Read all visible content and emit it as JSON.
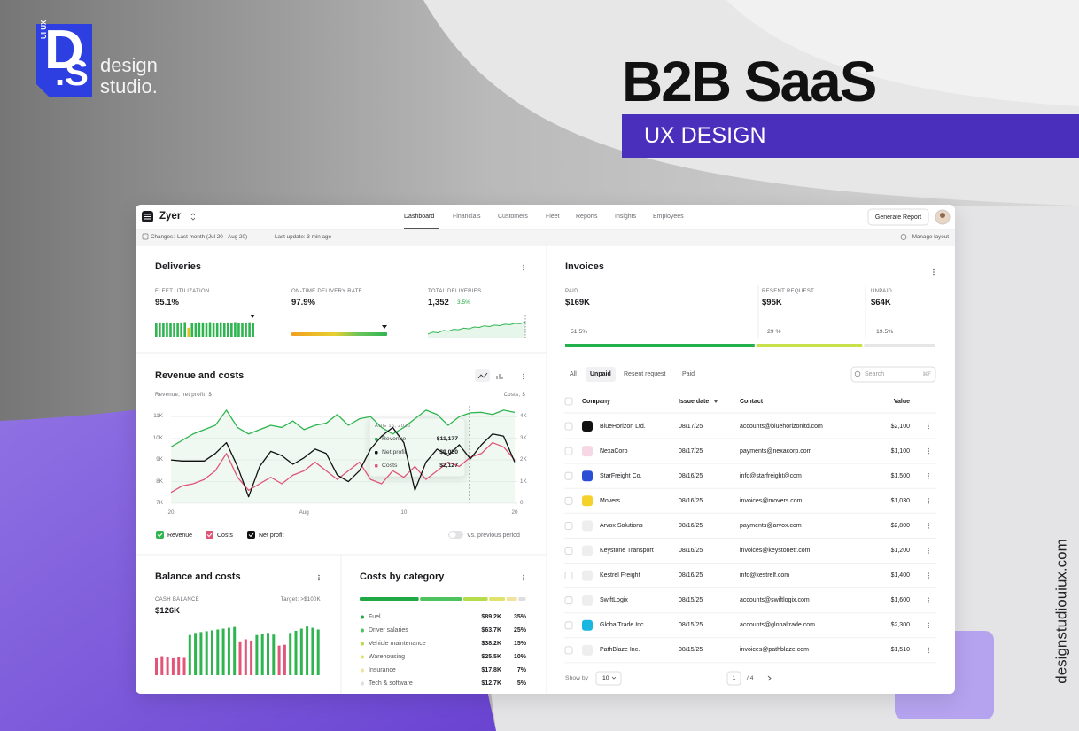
{
  "brand": {
    "logo_mark": "D",
    "logo_mark_2": ".S",
    "logo_tag": "UI UX",
    "name_line1": "design",
    "name_line2": "studio."
  },
  "hero": {
    "title": "B2B SaaS",
    "subtitle": "UX DESIGN"
  },
  "website": "designstudiouiux.com",
  "app": {
    "name": "Zyer",
    "nav": [
      "Dashboard",
      "Financials",
      "Customers",
      "Fleet",
      "Reports",
      "Insights",
      "Employees"
    ],
    "generate_button": "Generate Report",
    "changes_label": "Changes:",
    "changes_value": "Last month (Jul 20 - Aug 20)",
    "last_update": "Last update: 3 min ago",
    "manage_layout": "Manage layout"
  },
  "deliveries": {
    "title": "Deliveries",
    "fleet": {
      "label": "FLEET UTILIZATION",
      "value": "95.1%",
      "bars": [
        92,
        95,
        90,
        96,
        94,
        93,
        88,
        95,
        97,
        60,
        94,
        92,
        96,
        95,
        93,
        97,
        90,
        94,
        96,
        92,
        95,
        93,
        97,
        94,
        91,
        95,
        96,
        93
      ],
      "bar_colors": [
        "#2fb550",
        "#2fb550",
        "#2fb550",
        "#2fb550",
        "#2fb550",
        "#2fb550",
        "#2fb550",
        "#2fb550",
        "#2fb550",
        "#e4c21c",
        "#2fb550",
        "#2fb550",
        "#2fb550",
        "#2fb550",
        "#2fb550",
        "#2fb550",
        "#2fb550",
        "#2fb550",
        "#2fb550",
        "#2fb550",
        "#2fb550",
        "#2fb550",
        "#2fb550",
        "#2fb550",
        "#2fb550",
        "#2fb550",
        "#2fb550",
        "#2fb550"
      ],
      "ylim": [
        0,
        100
      ]
    },
    "on_time": {
      "label": "ON-TIME DELIVERY RATE",
      "value": "97.9%"
    },
    "total": {
      "label": "TOTAL DELIVERIES",
      "value": "1,352",
      "change": "↑ 3.5%",
      "trend": [
        20,
        28,
        25,
        35,
        32,
        40,
        38,
        45,
        42,
        50,
        48,
        55,
        52,
        58,
        56,
        62,
        60,
        66,
        64,
        72
      ],
      "ylim": [
        0,
        100
      ],
      "color": "#2fb550"
    }
  },
  "revenue_chart": {
    "type": "line",
    "title": "Revenue and costs",
    "y_label": "Revenue, net profit, $",
    "y2_label": "Costs, $",
    "categories": [
      "20",
      null,
      null,
      null,
      null,
      null,
      null,
      null,
      null,
      null,
      null,
      null,
      "Aug",
      null,
      null,
      null,
      null,
      null,
      null,
      null,
      null,
      "10",
      null,
      null,
      null,
      null,
      null,
      null,
      null,
      null,
      null,
      "20"
    ],
    "series": [
      {
        "name": "Revenue",
        "color": "#2fb550",
        "values": [
          9600,
          9900,
          10200,
          10400,
          10600,
          11300,
          10500,
          10200,
          10400,
          10600,
          10500,
          10800,
          10400,
          10600,
          10700,
          11100,
          10600,
          10900,
          11000,
          10500,
          10200,
          10500,
          10900,
          11300,
          11100,
          10600,
          11000,
          11177,
          11200,
          11100,
          11300,
          11200
        ]
      },
      {
        "name": "Costs",
        "color": "#e05577",
        "axis": "y2",
        "values": [
          500,
          800,
          900,
          1100,
          1500,
          2300,
          1200,
          600,
          900,
          1200,
          900,
          1300,
          1500,
          1900,
          1500,
          1100,
          1500,
          1900,
          1100,
          900,
          1500,
          1200,
          1700,
          1100,
          1500,
          1900,
          1700,
          2127,
          2300,
          2800,
          2600,
          2000
        ]
      },
      {
        "name": "Net profit",
        "color": "#111111",
        "values": [
          9000,
          8950,
          8950,
          8950,
          9300,
          9800,
          8700,
          7300,
          8700,
          9400,
          9200,
          8800,
          9100,
          9500,
          9300,
          8300,
          8000,
          8500,
          9500,
          10100,
          10500,
          9800,
          7600,
          8900,
          9500,
          9200,
          9700,
          9050,
          9700,
          10200,
          10100,
          8900
        ]
      }
    ],
    "ylim": [
      7000,
      11500
    ],
    "yticks": [
      {
        "value": 7000,
        "label": "7K"
      },
      {
        "value": 8000,
        "label": "8K"
      },
      {
        "value": 9000,
        "label": "9K"
      },
      {
        "value": 10000,
        "label": "10K"
      },
      {
        "value": 11000,
        "label": "11K"
      }
    ],
    "y2lim": [
      0,
      4500
    ],
    "y2ticks": [
      0,
      {
        "value": 1000,
        "label": "1K"
      },
      {
        "value": 2000,
        "label": "2K"
      },
      {
        "value": 3000,
        "label": "3K"
      },
      {
        "value": 4000,
        "label": "4K"
      }
    ],
    "grid": true,
    "tooltip": {
      "date": "AUG 16, 2025",
      "rows": [
        {
          "name": "Revenue",
          "value": "$11,177",
          "color": "#2fb550"
        },
        {
          "name": "Net profit",
          "value": "$9,050",
          "color": "#111111"
        },
        {
          "name": "Costs",
          "value": "$2,127",
          "color": "#e05577"
        }
      ]
    },
    "compare_toggle": "Vs. previous period"
  },
  "balance": {
    "title": "Balance and costs",
    "label": "CASH BALANCE",
    "target": "Target: >$100K",
    "value": "$126K",
    "bars": [
      40,
      45,
      42,
      40,
      44,
      41,
      95,
      100,
      102,
      104,
      106,
      108,
      110,
      112,
      114,
      80,
      85,
      82,
      95,
      98,
      100,
      96,
      70,
      72,
      100,
      105,
      110,
      115,
      112,
      108
    ],
    "bar_colors": [
      "#e25579",
      "#e25579",
      "#e25579",
      "#e25579",
      "#e25579",
      "#e25579",
      "#2fb550",
      "#2fb550",
      "#2fb550",
      "#2fb550",
      "#2fb550",
      "#2fb550",
      "#2fb550",
      "#2fb550",
      "#2fb550",
      "#e25579",
      "#e25579",
      "#e25579",
      "#2fb550",
      "#2fb550",
      "#2fb550",
      "#2fb550",
      "#e25579",
      "#e25579",
      "#2fb550",
      "#2fb550",
      "#2fb550",
      "#2fb550",
      "#2fb550",
      "#2fb550"
    ],
    "ylim": [
      0,
      130
    ]
  },
  "costs_by_category": {
    "title": "Costs by category",
    "items": [
      {
        "name": "Fuel",
        "amount": "$89.2K",
        "pct": 35,
        "pct_label": "35%",
        "color": "#1fa844"
      },
      {
        "name": "Driver salaries",
        "amount": "$63.7K",
        "pct": 25,
        "pct_label": "25%",
        "color": "#4cc35e"
      },
      {
        "name": "Vehicle maintenance",
        "amount": "$38.2K",
        "pct": 15,
        "pct_label": "15%",
        "color": "#b5dc4a"
      },
      {
        "name": "Warehousing",
        "amount": "$25.5K",
        "pct": 10,
        "pct_label": "10%",
        "color": "#e0e36a"
      },
      {
        "name": "Insurance",
        "amount": "$17.8K",
        "pct": 7,
        "pct_label": "7%",
        "color": "#f0e3a0"
      },
      {
        "name": "Tech & software",
        "amount": "$12.7K",
        "pct": 5,
        "pct_label": "5%",
        "color": "#dedede"
      }
    ]
  },
  "invoices": {
    "title": "Invoices",
    "summary": [
      {
        "label": "PAID",
        "amount": "$169K",
        "share": 51.5,
        "share_label": "51.5%",
        "color": "#22b14c"
      },
      {
        "label": "RESENT REQUEST",
        "amount": "$95K",
        "share": 29,
        "share_label": "29 %",
        "color": "#c8e04a"
      },
      {
        "label": "UNPAID",
        "amount": "$64K",
        "share": 19.5,
        "share_label": "19.5%",
        "color": "#e6e6e6"
      }
    ],
    "tabs": [
      "All",
      "Unpaid",
      "Resent request",
      "Paid"
    ],
    "search": "Search",
    "search_shortcut": "⌘F",
    "columns": [
      "Company",
      "Issue date",
      "Contact",
      "Value"
    ],
    "rows": [
      [
        "BlueHorizon Ltd.",
        "08/17/25",
        "accounts@bluehorizonltd.com",
        "$2,100"
      ],
      [
        "NexaCorp",
        "08/17/25",
        "payments@nexacorp.com",
        "$1,100"
      ],
      [
        "StarFreight Co.",
        "08/16/25",
        "info@starfreight@com",
        "$1,500"
      ],
      [
        "Movers",
        "08/16/25",
        "invoices@movers.com",
        "$1,030"
      ],
      [
        "Arvox Solutions",
        "08/16/25",
        "payments@arvox.com",
        "$2,800"
      ],
      [
        "Keystone Transport",
        "08/16/25",
        "invoices@keystonetr.com",
        "$1,200"
      ],
      [
        "Kestrel Freight",
        "08/16/25",
        "info@kestrelf.com",
        "$1,400"
      ],
      [
        "SwiftLogix",
        "08/15/25",
        "accounts@swiftlogix.com",
        "$1,600"
      ],
      [
        "GlobalTrade Inc.",
        "08/15/25",
        "accounts@globaltrade.com",
        "$2,300"
      ],
      [
        "PathBlaze Inc.",
        "08/15/25",
        "invoices@pathblaze.com",
        "$1,510"
      ]
    ],
    "icon_colors": [
      "#111111",
      "#f7d7e3",
      "#2a4fd6",
      "#f5d22a",
      "#eeeeee",
      "#eeeeee",
      "#eeeeee",
      "#eeeeee",
      "#19b6e0",
      "#eeeeee"
    ],
    "show_by_label": "Show by",
    "show_by_value": "10",
    "page": "1",
    "pages": "/ 4"
  }
}
